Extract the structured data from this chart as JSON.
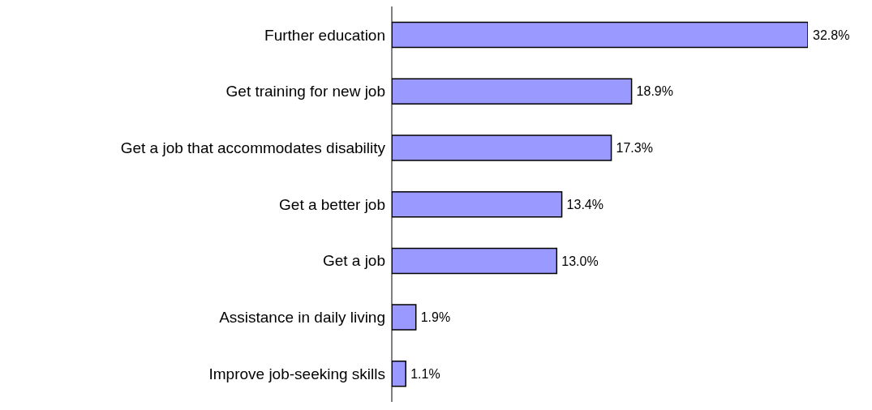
{
  "chart_data": {
    "type": "bar",
    "orientation": "horizontal",
    "categories": [
      "Further education",
      "Get training for new job",
      "Get a job that accommodates disability",
      "Get a better job",
      "Get a job",
      "Assistance in daily living",
      "Improve job-seeking skills"
    ],
    "values": [
      32.8,
      18.9,
      17.3,
      13.4,
      13.0,
      1.9,
      1.1
    ],
    "value_labels": [
      "32.8%",
      "18.9%",
      "17.3%",
      "13.4%",
      "13.0%",
      "1.9%",
      "1.1%"
    ],
    "color": "#9999ff"
  }
}
